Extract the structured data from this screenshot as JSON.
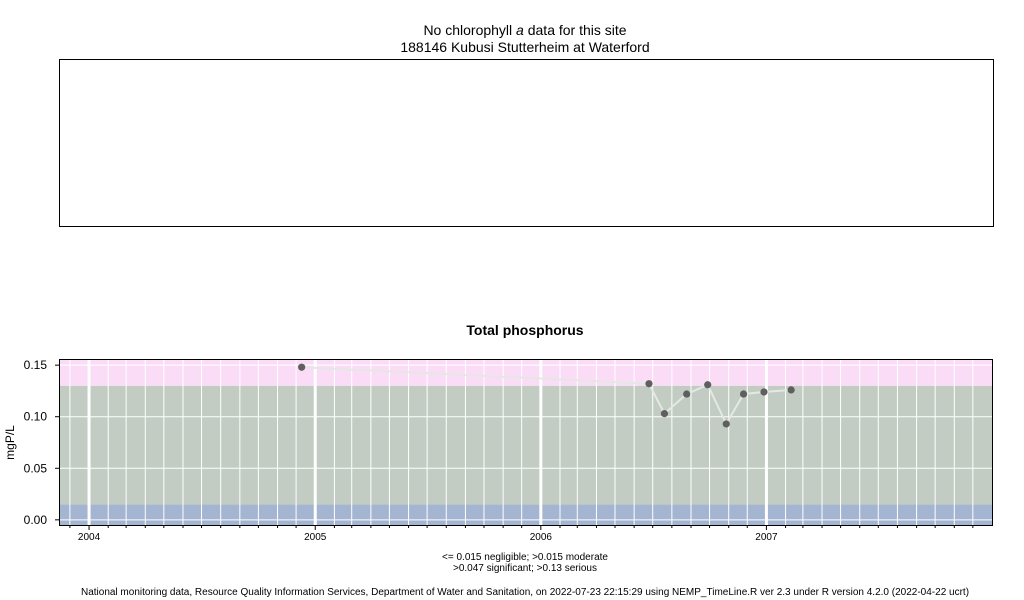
{
  "top_panel": {
    "title_before": "No chlorophyll",
    "title_italic": "a",
    "title_after": " data for this site",
    "site": "188146 Kubusi Stutterheim at Waterford"
  },
  "chart_data": {
    "type": "scatter",
    "title": "Total phosphorus",
    "xlabel": "",
    "ylabel": "mgP/L",
    "x_ticks": [
      "2004",
      "2005",
      "2006",
      "2007"
    ],
    "y_ticks": [
      "0.00",
      "0.05",
      "0.10",
      "0.15"
    ],
    "xlim": [
      "2003-11-15",
      "2008-01-01"
    ],
    "ylim": [
      -0.005,
      0.155
    ],
    "bands": [
      {
        "from": -0.005,
        "to": 0.015,
        "color": "#a3b5d1"
      },
      {
        "from": 0.015,
        "to": 0.13,
        "color": "#c2ccc2"
      },
      {
        "from": 0.13,
        "to": 0.155,
        "color": "#fadcf7"
      }
    ],
    "grid": true,
    "series": [
      {
        "point_color": "#5f5f5f",
        "line_color": "#e4e8e4",
        "points": [
          {
            "x": "2004-12-10",
            "y": 0.148
          },
          {
            "x": "2006-06-25",
            "y": 0.132
          },
          {
            "x": "2006-07-20",
            "y": 0.103
          },
          {
            "x": "2006-08-25",
            "y": 0.122
          },
          {
            "x": "2006-09-28",
            "y": 0.131
          },
          {
            "x": "2006-10-28",
            "y": 0.093
          },
          {
            "x": "2006-11-25",
            "y": 0.122
          },
          {
            "x": "2006-12-28",
            "y": 0.124
          },
          {
            "x": "2007-02-10",
            "y": 0.126
          }
        ]
      }
    ]
  },
  "notes": {
    "line1": "<= 0.015 negligible; >0.015 moderate",
    "line2": ">0.047 significant; >0.13 serious"
  },
  "footer": "National monitoring data, Resource Quality Information Services, Department of Water and Sanitation, on 2022-07-23 22:15:29 using NEMP_TimeLine.R ver 2.3 under R version 4.2.0 (2022-04-22 ucrt)"
}
